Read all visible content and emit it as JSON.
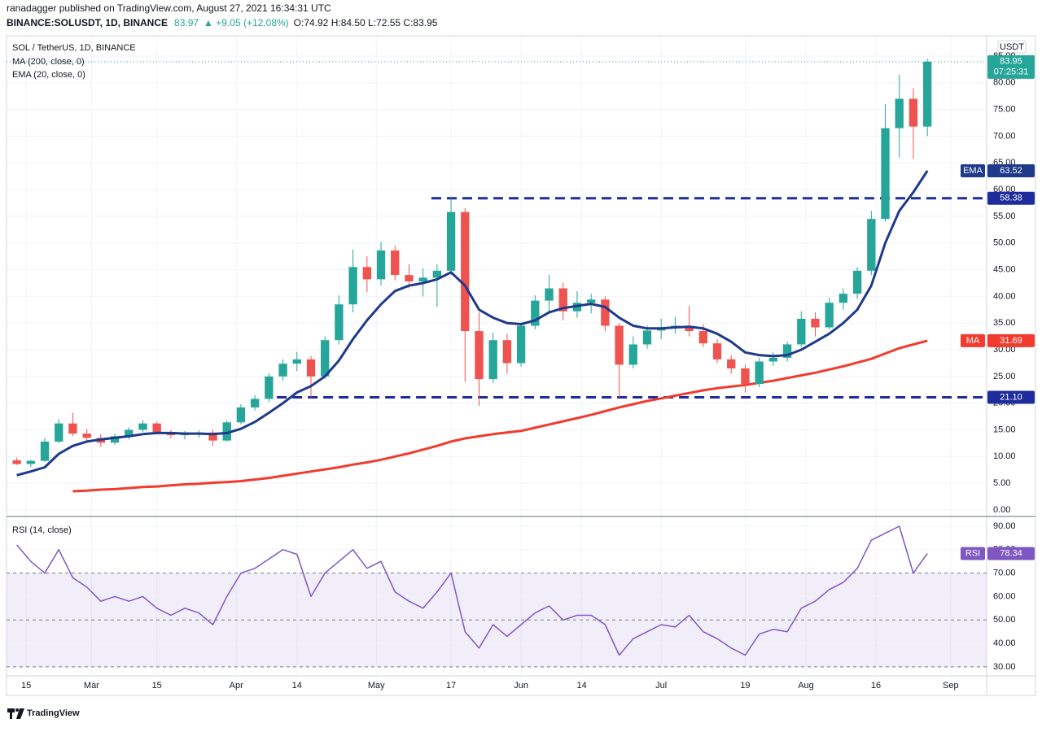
{
  "header": {
    "publisher": "ranadagger published on TradingView.com, August 27, 2021 16:34:31 UTC",
    "symbol": "BINANCE:SOLUSDT, 1D, BINANCE",
    "quote": "83.97",
    "change": "▲ +9.05 (+12.08%)",
    "ohlc": "O:74.92 H:84.50 L:72.55 C:83.95"
  },
  "footer": {
    "brand": "TradingView"
  },
  "chart_data": [
    {
      "type": "candlestick",
      "title": "SOL / TetherUS, 1D, BINANCE",
      "currency": "USDT",
      "countdown": "07:25:31",
      "up_color": "#26a69a",
      "down_color": "#ef5350",
      "grid": true,
      "x": [
        44,
        47,
        50,
        53,
        56,
        59,
        62,
        65,
        68,
        71,
        74,
        77,
        80,
        83,
        86,
        89,
        92,
        95,
        98,
        101,
        104,
        107,
        110,
        113,
        116,
        119,
        122,
        125,
        128,
        131,
        134,
        137,
        140,
        143,
        146,
        149,
        152,
        155,
        158,
        161,
        164,
        167,
        170,
        173,
        176,
        179,
        182,
        185,
        188,
        191,
        194,
        197,
        200,
        203,
        206,
        209,
        212,
        215,
        218,
        221,
        224,
        227,
        230,
        233,
        236,
        239
      ],
      "open": [
        9.3,
        8.6,
        9.2,
        12.8,
        16.2,
        14.3,
        13.5,
        12.6,
        13.8,
        15.0,
        16.2,
        14.6,
        14.0,
        14.2,
        14.5,
        13.0,
        16.4,
        19.2,
        20.8,
        25.0,
        27.4,
        28.2,
        25.0,
        31.8,
        38.5,
        45.5,
        43.2,
        48.6,
        44.0,
        42.8,
        43.5,
        44.8,
        55.8,
        33.5,
        24.5,
        31.8,
        27.5,
        34.5,
        39.2,
        41.5,
        37.2,
        38.8,
        39.4,
        34.5,
        27.2,
        31.0,
        33.6,
        34.2,
        34.5,
        33.5,
        31.2,
        28.2,
        26.5,
        23.6,
        27.8,
        28.5,
        31.0,
        35.8,
        34.2,
        38.8,
        40.5,
        44.8,
        54.5,
        71.5,
        77.0,
        71.8
      ],
      "high": [
        9.8,
        9.4,
        13.5,
        17.0,
        18.2,
        15.2,
        14.2,
        14.3,
        15.5,
        16.8,
        16.6,
        15.0,
        14.8,
        14.9,
        15.0,
        16.8,
        19.8,
        21.5,
        25.6,
        28.2,
        29.6,
        28.8,
        32.5,
        40.2,
        48.8,
        47.5,
        50.2,
        49.5,
        46.0,
        45.2,
        46.0,
        58.4,
        56.5,
        37.0,
        33.2,
        33.0,
        35.0,
        40.2,
        44.0,
        42.5,
        41.0,
        40.5,
        40.0,
        35.0,
        32.5,
        34.5,
        35.8,
        36.2,
        38.2,
        34.8,
        32.0,
        29.0,
        27.2,
        28.5,
        29.5,
        31.5,
        37.2,
        37.0,
        39.8,
        41.5,
        45.5,
        56.0,
        76.0,
        81.5,
        79.0,
        84.5
      ],
      "low": [
        8.4,
        8.0,
        9.0,
        12.5,
        13.8,
        12.6,
        11.8,
        12.2,
        13.2,
        14.6,
        14.2,
        13.4,
        13.2,
        13.5,
        12.0,
        12.8,
        16.0,
        18.6,
        20.2,
        24.2,
        26.0,
        21.1,
        24.6,
        31.0,
        37.0,
        40.8,
        42.0,
        43.0,
        41.5,
        40.0,
        38.0,
        44.0,
        24.0,
        19.5,
        23.8,
        25.5,
        26.8,
        33.8,
        37.0,
        35.5,
        36.0,
        36.8,
        33.5,
        21.1,
        26.5,
        30.2,
        32.0,
        33.0,
        32.5,
        30.5,
        27.5,
        25.5,
        22.0,
        23.0,
        27.0,
        27.8,
        30.5,
        32.5,
        33.8,
        37.5,
        39.5,
        44.0,
        54.0,
        66.0,
        65.8,
        70.0
      ],
      "close": [
        8.6,
        9.2,
        12.8,
        16.2,
        14.3,
        13.5,
        12.6,
        13.8,
        15.0,
        16.2,
        14.6,
        14.0,
        14.2,
        14.5,
        13.0,
        16.4,
        19.2,
        20.8,
        25.0,
        27.4,
        28.2,
        25.0,
        31.8,
        38.5,
        45.5,
        43.2,
        48.6,
        44.0,
        42.8,
        43.5,
        44.8,
        55.8,
        33.5,
        24.5,
        31.8,
        27.5,
        34.5,
        39.2,
        41.5,
        37.2,
        38.8,
        39.4,
        34.5,
        27.2,
        31.0,
        33.6,
        34.2,
        34.5,
        33.5,
        31.2,
        28.2,
        26.5,
        23.6,
        27.8,
        28.5,
        31.0,
        35.8,
        34.2,
        38.8,
        40.5,
        44.8,
        54.5,
        71.5,
        77.0,
        71.8,
        83.95
      ],
      "series": [
        {
          "name": "MA (200, close, 0)",
          "short": "MA",
          "color": "#f23b2f",
          "values": [
            null,
            null,
            null,
            null,
            3.5,
            3.6,
            3.8,
            3.9,
            4.1,
            4.3,
            4.4,
            4.6,
            4.8,
            4.9,
            5.1,
            5.2,
            5.4,
            5.7,
            6.0,
            6.4,
            6.8,
            7.2,
            7.6,
            8.0,
            8.5,
            8.9,
            9.4,
            10,
            10.6,
            11.3,
            12,
            12.8,
            13.4,
            13.8,
            14.2,
            14.5,
            14.8,
            15.4,
            16,
            16.6,
            17.2,
            17.8,
            18.5,
            19.2,
            19.8,
            20.4,
            20.9,
            21.4,
            21.9,
            22.4,
            22.8,
            23.1,
            23.4,
            23.8,
            24.2,
            24.7,
            25.2,
            25.7,
            26.3,
            26.9,
            27.6,
            28.3,
            29.3,
            30.3,
            31.0,
            31.69
          ]
        },
        {
          "name": "EMA (20, close, 0)",
          "short": "EMA",
          "color": "#1e3a8a",
          "values": [
            6.5,
            7.2,
            8,
            10.5,
            12,
            12.8,
            13.2,
            13.5,
            13.8,
            14.2,
            14.4,
            14.4,
            14.3,
            14.3,
            14.2,
            14.4,
            15.2,
            16.5,
            18.2,
            20,
            22,
            23.2,
            25,
            28,
            32,
            35.5,
            38.5,
            41,
            42,
            42.5,
            43.2,
            44.5,
            42,
            37.5,
            36,
            35,
            34.8,
            35.5,
            37,
            37.8,
            38.2,
            38.6,
            38,
            36,
            34.5,
            34,
            34,
            34.2,
            34.3,
            34,
            33,
            31.5,
            29.5,
            29,
            28.8,
            29,
            30,
            31.5,
            33,
            35,
            37.5,
            42,
            50,
            56,
            59.5,
            63.52
          ]
        }
      ],
      "levels": [
        {
          "value": 58.38,
          "start": 132.8,
          "color": "#1f2d9c"
        },
        {
          "value": 21.1,
          "label": "21.10",
          "start": 99.7,
          "color": "#1f2d9c"
        }
      ],
      "xlim": [
        41.8,
        251.7
      ],
      "xticks": [
        {
          "value": 46,
          "label": "15"
        },
        {
          "value": 60,
          "label": "Mar"
        },
        {
          "value": 74,
          "label": "15"
        },
        {
          "value": 91,
          "label": "Apr"
        },
        {
          "value": 104,
          "label": "14"
        },
        {
          "value": 121,
          "label": "May"
        },
        {
          "value": 137,
          "label": "17"
        },
        {
          "value": 152,
          "label": "Jun"
        },
        {
          "value": 165,
          "label": "14"
        },
        {
          "value": 182,
          "label": "Jul"
        },
        {
          "value": 200,
          "label": "19"
        },
        {
          "value": 213,
          "label": "Aug"
        },
        {
          "value": 228,
          "label": "16"
        },
        {
          "value": 244,
          "label": "Sep"
        }
      ],
      "ylim": [
        -1.07,
        88.8
      ],
      "yticks": [
        {
          "value": 0,
          "label": "0.00"
        },
        {
          "value": 5,
          "label": "5.00"
        },
        {
          "value": 10,
          "label": "10.00"
        },
        {
          "value": 15,
          "label": "15.00"
        },
        {
          "value": 20,
          "label": "20.00"
        },
        {
          "value": 25,
          "label": "25.00"
        },
        {
          "value": 30,
          "label": "30.00"
        },
        {
          "value": 35,
          "label": "35.00"
        },
        {
          "value": 40,
          "label": "40.00"
        },
        {
          "value": 45,
          "label": "45.00"
        },
        {
          "value": 50,
          "label": "50.00"
        },
        {
          "value": 55,
          "label": "55.00"
        },
        {
          "value": 60,
          "label": "60.00"
        },
        {
          "value": 65,
          "label": "65.00"
        },
        {
          "value": 70,
          "label": "70.00"
        },
        {
          "value": 75,
          "label": "75.00"
        },
        {
          "value": 80,
          "label": "80.00"
        },
        {
          "value": 85,
          "label": "85.00"
        }
      ]
    },
    {
      "type": "line",
      "grid": true,
      "band_color": "#7e57c2",
      "x": [
        44,
        47,
        50,
        53,
        56,
        59,
        62,
        65,
        68,
        71,
        74,
        77,
        80,
        83,
        86,
        89,
        92,
        95,
        98,
        101,
        104,
        107,
        110,
        113,
        116,
        119,
        122,
        125,
        128,
        131,
        134,
        137,
        140,
        143,
        146,
        149,
        152,
        155,
        158,
        161,
        164,
        167,
        170,
        173,
        176,
        179,
        182,
        185,
        188,
        191,
        194,
        197,
        200,
        203,
        206,
        209,
        212,
        215,
        218,
        221,
        224,
        227,
        230,
        233,
        236,
        239
      ],
      "series": [
        {
          "name": "RSI (14, close)",
          "short": "RSI",
          "color": "#7e57c2",
          "values": [
            82,
            75,
            70,
            80,
            68,
            64,
            58,
            60,
            58,
            60,
            55,
            52,
            55,
            53,
            48,
            60,
            70,
            72,
            76,
            80,
            78,
            60,
            70,
            75,
            80,
            72,
            75,
            62,
            58,
            55,
            62,
            70,
            45,
            38,
            48,
            43,
            48,
            53,
            56,
            50,
            52,
            52,
            48,
            35,
            42,
            45,
            48,
            47,
            52,
            45,
            42,
            38,
            35,
            44,
            46,
            45,
            55,
            58,
            63,
            66,
            72,
            84,
            87,
            90,
            70,
            78.34
          ]
        }
      ],
      "bands": [
        70,
        50,
        30
      ],
      "xlim": [
        41.8,
        251.7
      ],
      "ylim": [
        26.5,
        93.8
      ],
      "yticks": [
        {
          "value": 30,
          "label": "30.00"
        },
        {
          "value": 40,
          "label": "40.00"
        },
        {
          "value": 50,
          "label": "50.00"
        },
        {
          "value": 60,
          "label": "60.00"
        },
        {
          "value": 70,
          "label": "70.00"
        },
        {
          "value": 80,
          "label": "80.00"
        },
        {
          "value": 90,
          "label": "90.00"
        }
      ]
    }
  ]
}
